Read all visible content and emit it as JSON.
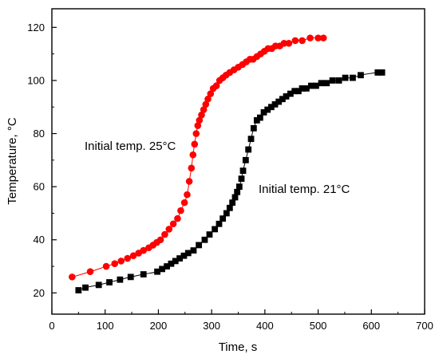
{
  "chart_data": {
    "type": "scatter",
    "xlabel": "Time, s",
    "ylabel": "Temperature, °C",
    "xlim": [
      0,
      700
    ],
    "ylim": [
      12,
      127
    ],
    "xticks": [
      0,
      100,
      200,
      300,
      400,
      500,
      600,
      700
    ],
    "yticks": [
      20,
      40,
      60,
      80,
      100,
      120
    ],
    "grid": false,
    "annotations": [
      "Initial temp. 25°C",
      "Initial temp. 21°C"
    ],
    "series": [
      {
        "color": "#ff0000",
        "marker": "circle",
        "x": [
          38,
          72,
          102,
          118,
          130,
          142,
          153,
          163,
          172,
          182,
          190,
          197,
          204,
          212,
          220,
          228,
          236,
          242,
          249,
          254,
          258,
          262,
          265,
          268,
          271,
          274,
          277,
          281,
          285,
          289,
          293,
          298,
          303,
          309,
          315,
          321,
          327,
          334,
          342,
          350,
          358,
          365,
          372,
          378,
          385,
          392,
          399,
          406,
          413,
          420,
          428,
          436,
          445,
          457,
          470,
          485,
          500,
          510
        ],
        "y": [
          26,
          28,
          30,
          31,
          32,
          33,
          34,
          35,
          36,
          37,
          38,
          39,
          40,
          42,
          44,
          46,
          48,
          51,
          54,
          57,
          62,
          67,
          72,
          76,
          80,
          83,
          85,
          87,
          89,
          91,
          93,
          95,
          97,
          98,
          100,
          101,
          102,
          103,
          104,
          105,
          106,
          107,
          108,
          108,
          109,
          110,
          111,
          112,
          112,
          113,
          113,
          114,
          114,
          115,
          115,
          116,
          116,
          116
        ]
      },
      {
        "color": "#000000",
        "marker": "square",
        "x": [
          50,
          63,
          88,
          108,
          128,
          148,
          172,
          198,
          207,
          216,
          224,
          232,
          240,
          248,
          256,
          266,
          276,
          287,
          296,
          306,
          314,
          321,
          328,
          334,
          339,
          344,
          348,
          352,
          356,
          359,
          364,
          369,
          374,
          379,
          385,
          391,
          398,
          405,
          412,
          419,
          426,
          433,
          440,
          448,
          456,
          463,
          470,
          478,
          487,
          496,
          506,
          516,
          527,
          539,
          551,
          565,
          580,
          612,
          620
        ],
        "y": [
          21,
          22,
          23,
          24,
          25,
          26,
          27,
          28,
          29,
          30,
          31,
          32,
          33,
          34,
          35,
          36,
          38,
          40,
          42,
          44,
          46,
          48,
          50,
          52,
          54,
          56,
          58,
          60,
          63,
          66,
          70,
          74,
          78,
          82,
          85,
          86,
          88,
          89,
          90,
          91,
          92,
          93,
          94,
          95,
          96,
          96,
          97,
          97,
          98,
          98,
          99,
          99,
          100,
          100,
          101,
          101,
          102,
          103,
          103
        ]
      }
    ]
  }
}
